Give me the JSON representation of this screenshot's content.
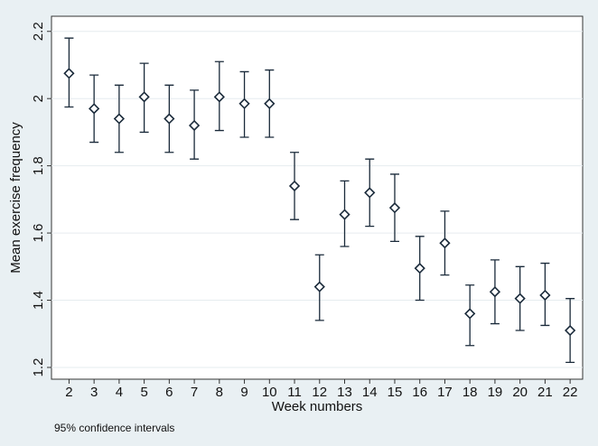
{
  "chart_data": {
    "type": "errorbar",
    "x_label": "Week numbers",
    "y_label": "Mean exercise frequency",
    "note": "95% confidence intervals",
    "x": [
      2,
      3,
      4,
      5,
      6,
      7,
      8,
      9,
      10,
      11,
      12,
      13,
      14,
      15,
      16,
      17,
      18,
      19,
      20,
      21,
      22
    ],
    "values": [
      2.075,
      1.97,
      1.94,
      2.005,
      1.94,
      1.92,
      2.005,
      1.985,
      1.985,
      1.74,
      1.44,
      1.655,
      1.72,
      1.675,
      1.495,
      1.57,
      1.36,
      1.425,
      1.405,
      1.415,
      1.31
    ],
    "lower": [
      1.975,
      1.87,
      1.84,
      1.9,
      1.84,
      1.82,
      1.905,
      1.885,
      1.885,
      1.64,
      1.34,
      1.56,
      1.62,
      1.575,
      1.4,
      1.475,
      1.265,
      1.33,
      1.31,
      1.325,
      1.215
    ],
    "upper": [
      2.18,
      2.07,
      2.04,
      2.105,
      2.04,
      2.025,
      2.11,
      2.08,
      2.085,
      1.84,
      1.535,
      1.755,
      1.82,
      1.775,
      1.59,
      1.665,
      1.445,
      1.52,
      1.5,
      1.51,
      1.405
    ],
    "color": "#1a2a3a",
    "xlim": [
      1.3,
      22.5
    ],
    "ylim": [
      1.165,
      2.245
    ],
    "xticks": [
      2,
      3,
      4,
      5,
      6,
      7,
      8,
      9,
      10,
      11,
      12,
      13,
      14,
      15,
      16,
      17,
      18,
      19,
      20,
      21,
      22
    ],
    "yticks": [
      1.2,
      1.4,
      1.6,
      1.8,
      2,
      2.2
    ],
    "grid": true
  }
}
